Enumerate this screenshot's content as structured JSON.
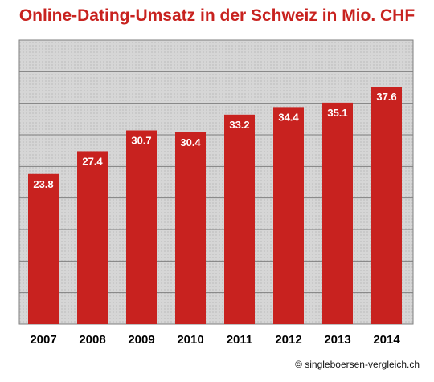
{
  "chart_data": {
    "type": "bar",
    "title": "Online-Dating-Umsatz in der Schweiz in Mio. CHF",
    "categories": [
      "2007",
      "2008",
      "2009",
      "2010",
      "2011",
      "2012",
      "2013",
      "2014"
    ],
    "values": [
      23.8,
      27.4,
      30.7,
      30.4,
      33.2,
      34.4,
      35.1,
      37.6
    ],
    "value_labels": [
      "23.8",
      "27.4",
      "30.7",
      "30.4",
      "33.2",
      "34.4",
      "35.1",
      "37.6"
    ],
    "xlabel": "",
    "ylabel": "",
    "ylim": [
      0,
      45
    ],
    "grid": true,
    "legend": "none",
    "colors": {
      "bar": "#c8221f",
      "title": "#c8221f",
      "plot_bg": "#d9d9d9",
      "grid": "#7f7f7f"
    }
  },
  "footer": {
    "copyright": "© singleboersen-vergleich.ch"
  }
}
